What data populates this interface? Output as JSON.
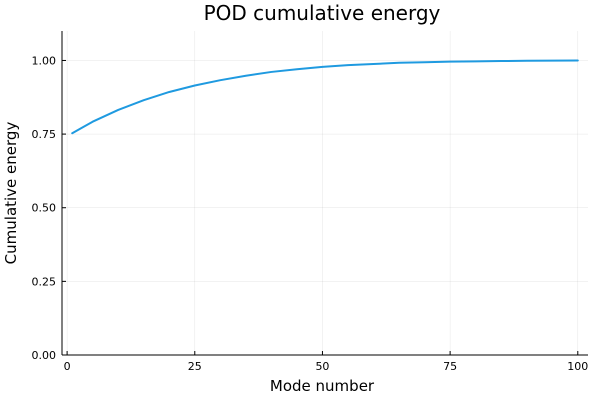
{
  "chart_data": {
    "type": "line",
    "title": "POD cumulative energy",
    "xlabel": "Mode number",
    "ylabel": "Cumulative energy",
    "xlim": [
      -1,
      102
    ],
    "ylim": [
      0,
      1.1
    ],
    "x_ticks": [
      0,
      25,
      50,
      75,
      100
    ],
    "y_ticks": [
      0.0,
      0.25,
      0.5,
      0.75,
      1.0
    ],
    "x_tick_labels": [
      "0",
      "25",
      "50",
      "75",
      "100"
    ],
    "y_tick_labels": [
      "0.00",
      "0.25",
      "0.50",
      "0.75",
      "1.00"
    ],
    "grid": true,
    "legend": "none",
    "series": [
      {
        "color": "#1f9ae0",
        "x": [
          1,
          5,
          10,
          15,
          20,
          25,
          30,
          35,
          40,
          45,
          50,
          55,
          60,
          65,
          70,
          75,
          80,
          85,
          90,
          95,
          100
        ],
        "y": [
          0.753,
          0.792,
          0.832,
          0.865,
          0.893,
          0.915,
          0.933,
          0.948,
          0.961,
          0.97,
          0.978,
          0.984,
          0.988,
          0.992,
          0.994,
          0.996,
          0.997,
          0.998,
          0.999,
          0.9995,
          1.0
        ]
      }
    ]
  }
}
